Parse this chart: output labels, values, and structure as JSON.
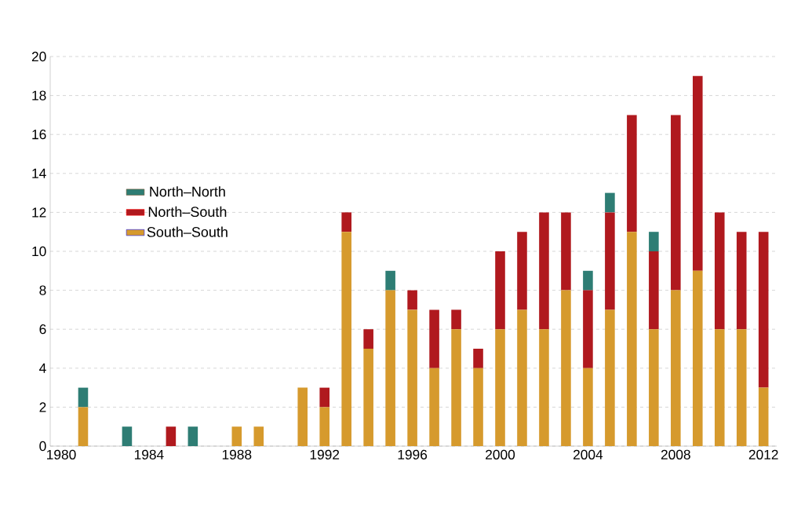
{
  "chart_data": {
    "type": "bar",
    "stacked": true,
    "x": [
      1980,
      1981,
      1982,
      1983,
      1984,
      1985,
      1986,
      1987,
      1988,
      1989,
      1990,
      1991,
      1992,
      1993,
      1994,
      1995,
      1996,
      1997,
      1998,
      1999,
      2000,
      2001,
      2002,
      2003,
      2004,
      2005,
      2006,
      2007,
      2008,
      2009,
      2010,
      2011,
      2012
    ],
    "series": [
      {
        "name": "South–South",
        "color": "#d69a2d",
        "values": [
          0,
          2,
          0,
          0,
          0,
          0,
          0,
          0,
          1,
          1,
          0,
          3,
          2,
          11,
          5,
          8,
          7,
          4,
          6,
          4,
          6,
          7,
          6,
          8,
          4,
          7,
          11,
          6,
          8,
          9,
          6,
          6,
          3
        ]
      },
      {
        "name": "North–South",
        "color": "#b0191e",
        "values": [
          0,
          0,
          0,
          0,
          0,
          1,
          0,
          0,
          0,
          0,
          0,
          0,
          1,
          1,
          1,
          0,
          1,
          3,
          1,
          1,
          4,
          4,
          6,
          4,
          4,
          5,
          6,
          4,
          9,
          10,
          6,
          5,
          8
        ]
      },
      {
        "name": "North–North",
        "color": "#2e7d74",
        "values": [
          0,
          1,
          0,
          1,
          0,
          0,
          1,
          0,
          0,
          0,
          0,
          0,
          0,
          0,
          0,
          1,
          0,
          0,
          0,
          0,
          0,
          0,
          0,
          0,
          1,
          1,
          0,
          1,
          0,
          0,
          0,
          0,
          0
        ]
      }
    ],
    "xlim": [
      1979.5,
      2012.6
    ],
    "xticks": [
      1980,
      1984,
      1988,
      1992,
      1996,
      2000,
      2004,
      2008,
      2012
    ],
    "ylim": [
      0,
      20
    ],
    "yticks": [
      0,
      2,
      4,
      6,
      8,
      10,
      12,
      14,
      16,
      18,
      20
    ],
    "grid": "y",
    "legend": "left"
  }
}
